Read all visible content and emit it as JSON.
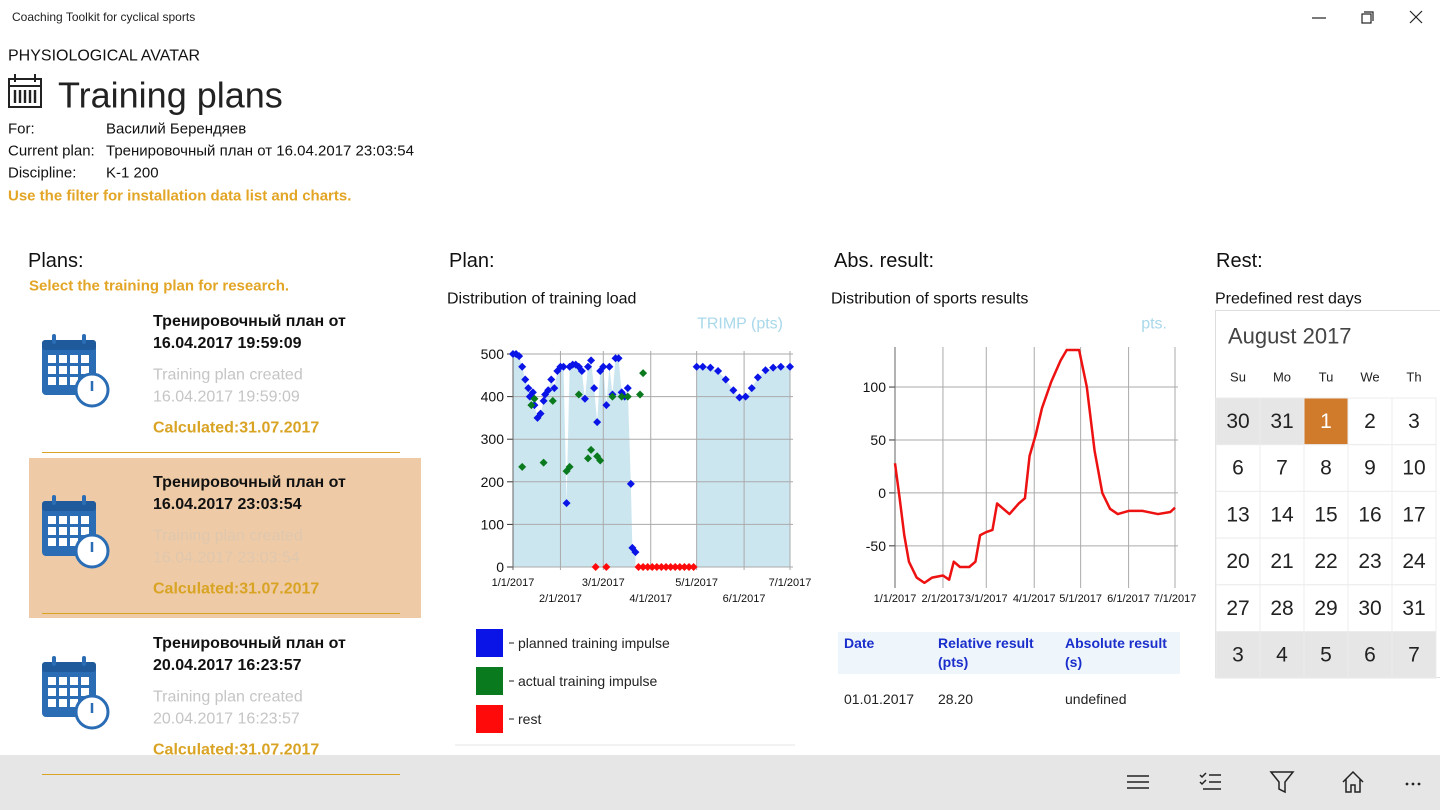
{
  "window": {
    "title": "Coaching Toolkit for cyclical sports"
  },
  "header": {
    "app": "PHYSIOLOGICAL AVATAR",
    "title": "Training plans",
    "fields": [
      {
        "label": "For:",
        "value": "Василий Берендяев"
      },
      {
        "label": "Current plan:",
        "value": "Тренировочный план от 16.04.2017 23:03:54"
      },
      {
        "label": "Discipline:",
        "value": "K-1 200"
      }
    ],
    "hint": "Use the filter for installation data list and charts."
  },
  "plans": {
    "heading": "Plans:",
    "hint": "Select the training plan for research.",
    "selected": 1,
    "items": [
      {
        "name": "Тренировочный план от 16.04.2017 19:59:09",
        "created_label": "Training plan created",
        "created": "16.04.2017 19:59:09",
        "calculated": "Calculated:31.07.2017"
      },
      {
        "name": "Тренировочный план от 16.04.2017 23:03:54",
        "created_label": "Training plan created",
        "created": "16.04.2017 23:03:54",
        "calculated": "Calculated:31.07.2017"
      },
      {
        "name": "Тренировочный план от 20.04.2017 16:23:57",
        "created_label": "Training plan created",
        "created": "20.04.2017 16:23:57",
        "calculated": "Calculated:31.07.2017"
      }
    ]
  },
  "plan_panel": {
    "heading": "Plan:"
  },
  "result_panel": {
    "heading": "Abs. result:",
    "table": {
      "header": [
        "Date",
        "Relative result (pts)",
        "Absolute result (s)"
      ],
      "rows": [
        [
          "01.01.2017",
          "28.20",
          "undefined"
        ]
      ]
    }
  },
  "chart_data": [
    {
      "type": "scatter",
      "title": "Distribution of training load",
      "ylabel": "TRIMP (pts)",
      "xlim": [
        "2017-01-01",
        "2017-07-01"
      ],
      "xticks": [
        {
          "value": "2017-01-01",
          "label": "1/1/2017"
        },
        {
          "value": "2017-02-01",
          "label": "2/1/2017"
        },
        {
          "value": "2017-03-01",
          "label": "3/1/2017"
        },
        {
          "value": "2017-04-01",
          "label": "4/1/2017"
        },
        {
          "value": "2017-05-01",
          "label": "5/1/2017"
        },
        {
          "value": "2017-06-01",
          "label": "6/1/2017"
        },
        {
          "value": "2017-07-01",
          "label": "7/1/2017"
        }
      ],
      "ylim": [
        0,
        500
      ],
      "yticks": [
        0,
        100,
        200,
        300,
        400,
        500
      ],
      "grid": true,
      "area": true,
      "area_color": "#cce6f0",
      "series": [
        {
          "name": "planned training impulse",
          "color": "#0a14e6",
          "x": [
            "2017-01-01",
            "2017-01-03",
            "2017-01-05",
            "2017-01-07",
            "2017-01-09",
            "2017-01-11",
            "2017-01-12",
            "2017-01-14",
            "2017-01-15",
            "2017-01-17",
            "2017-01-19",
            "2017-01-21",
            "2017-01-22",
            "2017-01-24",
            "2017-01-26",
            "2017-01-28",
            "2017-01-30",
            "2017-02-01",
            "2017-02-03",
            "2017-02-05",
            "2017-02-07",
            "2017-02-09",
            "2017-02-11",
            "2017-02-13",
            "2017-02-15",
            "2017-02-17",
            "2017-02-19",
            "2017-02-21",
            "2017-02-23",
            "2017-02-25",
            "2017-02-27",
            "2017-03-01",
            "2017-03-03",
            "2017-03-05",
            "2017-03-07",
            "2017-03-09",
            "2017-03-11",
            "2017-03-13",
            "2017-03-15",
            "2017-03-17",
            "2017-03-19",
            "2017-03-20",
            "2017-03-22",
            null,
            "2017-05-01",
            "2017-05-05",
            "2017-05-10",
            "2017-05-15",
            "2017-05-20",
            "2017-05-25",
            "2017-05-29",
            "2017-06-02",
            "2017-06-06",
            "2017-06-10",
            "2017-06-15",
            "2017-06-20",
            "2017-06-25",
            "2017-07-01"
          ],
          "values": [
            500,
            500,
            495,
            470,
            440,
            420,
            400,
            410,
            380,
            350,
            360,
            390,
            405,
            415,
            440,
            420,
            460,
            470,
            470,
            150,
            470,
            475,
            475,
            470,
            460,
            395,
            470,
            485,
            420,
            340,
            460,
            470,
            380,
            470,
            405,
            490,
            490,
            410,
            400,
            420,
            195,
            45,
            35,
            null,
            470,
            470,
            468,
            460,
            440,
            415,
            398,
            400,
            420,
            445,
            462,
            468,
            470,
            470
          ]
        },
        {
          "name": "actual training impulse",
          "color": "#0a7a1e",
          "x": [
            "2017-01-07",
            "2017-01-13",
            "2017-01-15",
            "2017-01-21",
            "2017-01-27",
            "2017-02-05",
            "2017-02-07",
            "2017-02-13",
            "2017-02-19",
            "2017-02-21",
            "2017-02-25",
            "2017-02-27",
            "2017-03-07",
            "2017-03-13",
            "2017-03-17",
            "2017-03-25",
            "2017-03-27"
          ],
          "values": [
            235,
            380,
            395,
            245,
            390,
            225,
            235,
            405,
            255,
            275,
            260,
            250,
            400,
            400,
            400,
            405,
            455
          ]
        },
        {
          "name": "rest",
          "color": "#ff0a0a",
          "x": [
            "2017-02-24",
            "2017-03-03",
            "2017-03-24",
            "2017-03-27",
            "2017-03-30",
            "2017-04-02",
            "2017-04-05",
            "2017-04-08",
            "2017-04-11",
            "2017-04-14",
            "2017-04-17",
            "2017-04-20",
            "2017-04-23",
            "2017-04-26",
            "2017-04-29"
          ],
          "values": [
            0,
            0,
            0,
            0,
            0,
            0,
            0,
            0,
            0,
            0,
            0,
            0,
            0,
            0,
            0
          ]
        }
      ]
    },
    {
      "type": "line",
      "title": "Distribution of sports results",
      "ylabel": "pts.",
      "xlim": [
        "2017-01-01",
        "2017-07-01"
      ],
      "xticks": [
        {
          "value": "2017-01-01",
          "label": "1/1/2017"
        },
        {
          "value": "2017-02-01",
          "label": "2/1/2017"
        },
        {
          "value": "2017-03-01",
          "label": "3/1/2017"
        },
        {
          "value": "2017-04-01",
          "label": "4/1/2017"
        },
        {
          "value": "2017-05-01",
          "label": "5/1/2017"
        },
        {
          "value": "2017-06-01",
          "label": "6/1/2017"
        },
        {
          "value": "2017-07-01",
          "label": "7/1/2017"
        }
      ],
      "ylim": [
        -87,
        135
      ],
      "yticks": [
        -50,
        0,
        50,
        100
      ],
      "grid": true,
      "series": [
        {
          "color": "#ee1111",
          "x": [
            "2017-01-01",
            "2017-01-04",
            "2017-01-07",
            "2017-01-10",
            "2017-01-15",
            "2017-01-20",
            "2017-01-25",
            "2017-02-01",
            "2017-02-05",
            "2017-02-08",
            "2017-02-12",
            "2017-02-18",
            "2017-02-22",
            "2017-02-25",
            "2017-03-01",
            "2017-03-05",
            "2017-03-08",
            "2017-03-12",
            "2017-03-16",
            "2017-03-22",
            "2017-03-26",
            "2017-03-29",
            "2017-04-02",
            "2017-04-06",
            "2017-04-12",
            "2017-04-18",
            "2017-04-22",
            "2017-04-30",
            "2017-05-05",
            "2017-05-10",
            "2017-05-15",
            "2017-05-20",
            "2017-05-25",
            "2017-06-01",
            "2017-06-10",
            "2017-06-20",
            "2017-06-28",
            "2017-07-01"
          ],
          "values": [
            28,
            -5,
            -40,
            -65,
            -80,
            -85,
            -80,
            -78,
            -82,
            -65,
            -70,
            -70,
            -65,
            -40,
            -37,
            -35,
            -10,
            -15,
            -20,
            -10,
            -5,
            35,
            55,
            80,
            105,
            125,
            135,
            135,
            100,
            40,
            0,
            -15,
            -20,
            -17,
            -17,
            -20,
            -18,
            -14
          ]
        }
      ]
    }
  ],
  "calendar": {
    "heading": "Rest:",
    "subtitle": "Predefined rest days",
    "month": "August 2017",
    "weekdays": [
      "Su",
      "Mo",
      "Tu",
      "We",
      "Th"
    ],
    "days": [
      [
        30,
        31,
        1,
        2,
        3
      ],
      [
        6,
        7,
        8,
        9,
        10
      ],
      [
        13,
        14,
        15,
        16,
        17
      ],
      [
        20,
        21,
        22,
        23,
        24
      ],
      [
        27,
        28,
        29,
        30,
        31
      ],
      [
        3,
        4,
        5,
        6,
        7
      ]
    ],
    "selected": [
      0,
      2
    ]
  }
}
